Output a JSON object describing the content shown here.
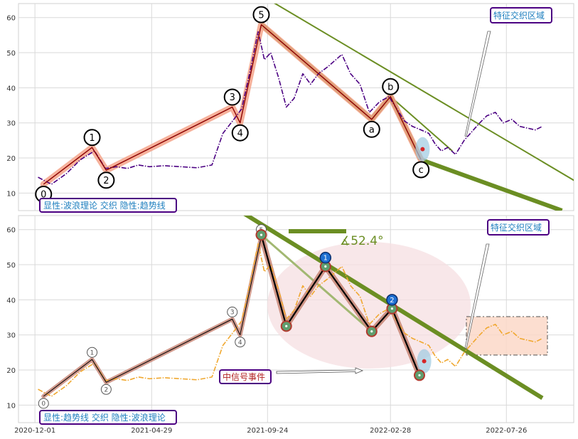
{
  "chart_data": [
    {
      "type": "line",
      "panel": "top",
      "ylim": [
        5,
        64
      ],
      "xlim": [
        "2020-11-10",
        "2022-10-20"
      ],
      "y_ticks": [
        10,
        20,
        30,
        40,
        50,
        60
      ],
      "grid": true,
      "colors": {
        "price": "#4b0082",
        "wave": "#8b0000",
        "wave_band": "#f4a38a",
        "trend": "#6b8e23",
        "zone": "#9ecae1"
      },
      "series": [
        {
          "key": "price",
          "x": [
            "2020-12-05",
            "2020-12-22",
            "2021-01-10",
            "2021-01-28",
            "2021-02-15",
            "2021-03-01",
            "2021-03-15",
            "2021-03-29",
            "2021-04-12",
            "2021-04-26",
            "2021-05-15",
            "2021-06-05",
            "2021-06-26",
            "2021-07-15",
            "2021-07-29",
            "2021-08-12",
            "2021-08-22",
            "2021-09-01",
            "2021-09-12",
            "2021-09-20",
            "2021-09-28",
            "2021-10-08",
            "2021-10-18",
            "2021-10-28",
            "2021-11-08",
            "2021-11-18",
            "2021-11-28",
            "2021-12-10",
            "2021-12-28",
            "2022-01-08",
            "2022-01-20",
            "2022-02-01",
            "2022-02-14",
            "2022-02-26",
            "2022-03-08",
            "2022-03-18",
            "2022-03-28",
            "2022-04-08",
            "2022-04-18",
            "2022-04-26",
            "2022-05-04",
            "2022-05-12",
            "2022-05-22",
            "2022-06-02",
            "2022-06-12",
            "2022-06-22",
            "2022-07-01",
            "2022-07-12",
            "2022-07-22",
            "2022-08-02",
            "2022-08-12",
            "2022-08-22",
            "2022-09-01",
            "2022-09-10"
          ],
          "y": [
            14.5,
            12.5,
            15.5,
            19.5,
            22,
            17,
            17.5,
            17,
            18,
            17.5,
            17.8,
            17.5,
            17.2,
            18,
            27,
            31,
            34,
            44,
            56,
            48,
            50,
            43,
            34.5,
            37,
            44,
            41,
            44,
            46,
            49.5,
            44,
            41,
            33,
            36,
            37.5,
            34,
            30.5,
            29,
            28,
            27,
            24,
            22,
            23,
            21,
            25,
            27.5,
            30,
            32,
            33,
            30,
            31,
            29,
            28.5,
            28,
            29
          ]
        }
      ],
      "wave_points": [
        {
          "label": "0",
          "x": "2020-12-12",
          "y": 12.5
        },
        {
          "label": "1",
          "x": "2021-02-12",
          "y": 23
        },
        {
          "label": "2",
          "x": "2021-03-02",
          "y": 16.5
        },
        {
          "label": "3",
          "x": "2021-08-10",
          "y": 34.5
        },
        {
          "label": "4",
          "x": "2021-08-20",
          "y": 30
        },
        {
          "label": "5",
          "x": "2021-09-16",
          "y": 58
        },
        {
          "label": "a",
          "x": "2022-02-04",
          "y": 31
        },
        {
          "label": "b",
          "x": "2022-02-28",
          "y": 37.5
        },
        {
          "label": "c",
          "x": "2022-04-08",
          "y": 19.5
        }
      ],
      "annotations": [
        {
          "text": "显性:波浪理论 交织 隐性:趋势线",
          "text_color": "#1f7fbf",
          "border": "#4b0082"
        },
        {
          "text": "特征交织区域",
          "text_color": "#1f7fbf",
          "border": "#4b0082"
        }
      ]
    },
    {
      "type": "line",
      "panel": "bottom",
      "ylim": [
        5,
        64
      ],
      "xlim": [
        "2020-11-10",
        "2022-10-20"
      ],
      "x_ticks": [
        "2020-12-01",
        "2021-04-29",
        "2021-09-24",
        "2022-02-28",
        "2022-07-26"
      ],
      "y_ticks": [
        10,
        20,
        30,
        40,
        50,
        60
      ],
      "grid": true,
      "colors": {
        "price": "#f0a830",
        "wave": "#000000",
        "wave_band": "#c98a7a",
        "trend": "#6b8e23",
        "trend_light": "#a2b872",
        "ellipse": "#f6dfe2",
        "box": "#fcd9c8"
      },
      "series": [
        {
          "key": "price",
          "x": [
            "2020-12-05",
            "2020-12-22",
            "2021-01-10",
            "2021-01-28",
            "2021-02-15",
            "2021-03-01",
            "2021-03-15",
            "2021-03-29",
            "2021-04-12",
            "2021-04-26",
            "2021-05-15",
            "2021-06-05",
            "2021-06-26",
            "2021-07-15",
            "2021-07-29",
            "2021-08-12",
            "2021-08-22",
            "2021-09-01",
            "2021-09-12",
            "2021-09-20",
            "2021-09-28",
            "2021-10-08",
            "2021-10-18",
            "2021-10-28",
            "2021-11-08",
            "2021-11-18",
            "2021-11-28",
            "2021-12-10",
            "2021-12-28",
            "2022-01-08",
            "2022-01-20",
            "2022-02-01",
            "2022-02-14",
            "2022-02-26",
            "2022-03-08",
            "2022-03-18",
            "2022-03-28",
            "2022-04-08",
            "2022-04-18",
            "2022-04-26",
            "2022-05-04",
            "2022-05-12",
            "2022-05-22",
            "2022-06-02",
            "2022-06-12",
            "2022-06-22",
            "2022-07-01",
            "2022-07-12",
            "2022-07-22",
            "2022-08-02",
            "2022-08-12",
            "2022-08-22",
            "2022-09-01",
            "2022-09-10"
          ],
          "y": [
            14.5,
            12.5,
            15.5,
            19.5,
            22,
            17,
            17.5,
            17,
            18,
            17.5,
            17.8,
            17.5,
            17.2,
            18,
            27,
            31,
            34,
            44,
            56,
            48,
            50,
            43,
            34.5,
            37,
            44,
            41,
            44,
            46,
            49.5,
            44,
            41,
            33,
            36,
            37.5,
            34,
            30.5,
            29,
            28,
            27,
            24,
            22,
            23,
            21,
            25,
            27.5,
            30,
            32,
            33,
            30,
            31,
            29,
            28.5,
            28,
            29
          ]
        }
      ],
      "wave_points": [
        {
          "label": "0",
          "x": "2020-12-12",
          "y": 12.5
        },
        {
          "label": "1",
          "x": "2021-02-12",
          "y": 23
        },
        {
          "label": "2",
          "x": "2021-03-02",
          "y": 16.5
        },
        {
          "label": "3",
          "x": "2021-08-10",
          "y": 34.5
        },
        {
          "label": "4",
          "x": "2021-08-20",
          "y": 30
        },
        {
          "label": "5",
          "x": "2021-09-16",
          "y": 58
        }
      ],
      "markers": [
        {
          "label": "1",
          "x": "2021-12-07",
          "y": 52
        },
        {
          "label": "2",
          "x": "2022-03-02",
          "y": 40
        }
      ],
      "annotations": [
        {
          "text": "∡52.4°",
          "color": "#6b8e23"
        },
        {
          "text": "中信号事件",
          "text_color": "#b22222",
          "border": "#4b0082"
        },
        {
          "text": "显性:趋势线 交织 隐性:波浪理论",
          "text_color": "#1f7fbf",
          "border": "#4b0082"
        },
        {
          "text": "特征交织区域",
          "text_color": "#1f7fbf",
          "border": "#4b0082"
        }
      ]
    }
  ]
}
